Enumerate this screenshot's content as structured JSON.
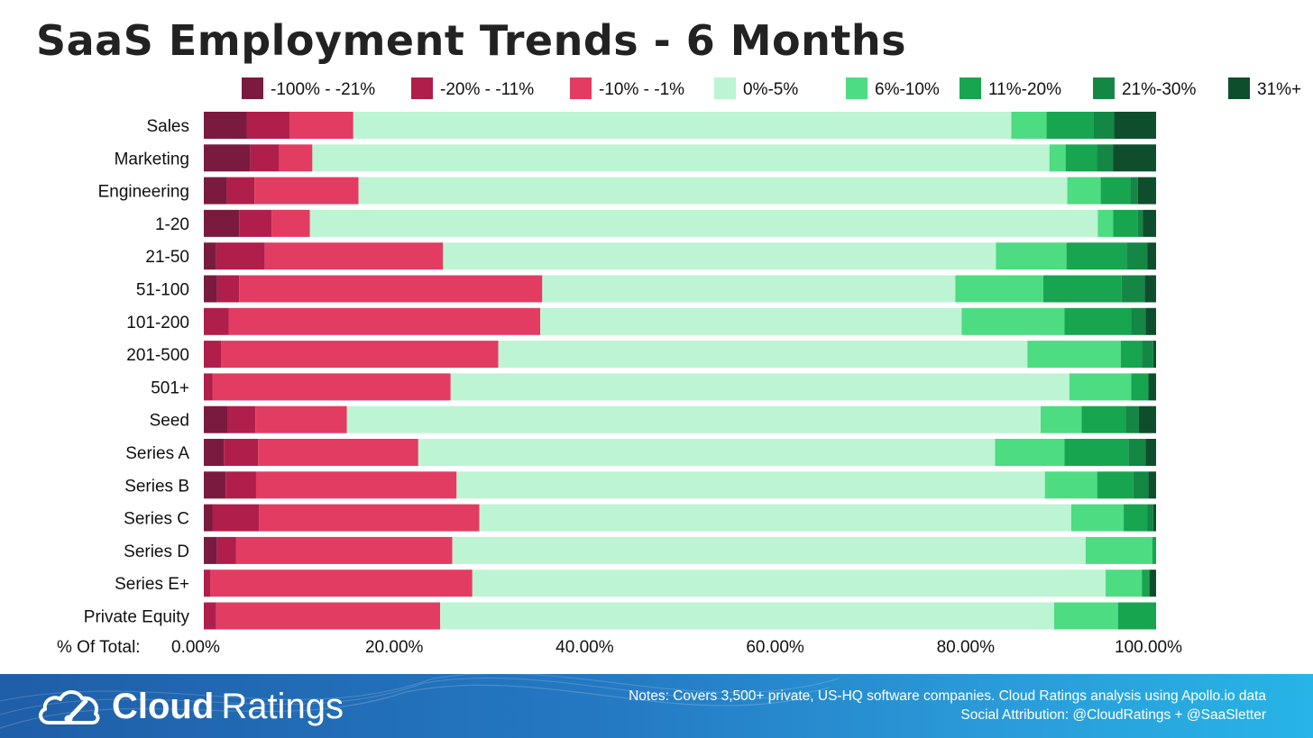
{
  "title": "SaaS Employment Trends - 6 Months",
  "brand": {
    "name_bold": "Cloud",
    "name_regular": "Ratings",
    "logo_icon": "cloud-gauge-icon"
  },
  "footer": {
    "notes": "Notes: Covers 3,500+ private, US-HQ software companies. Cloud Ratings analysis using Apollo.io data",
    "attribution": "Social Attribution: @CloudRatings + @SaaSletter"
  },
  "chart_data": {
    "type": "bar",
    "orientation": "horizontal",
    "stacked": "100%",
    "x_axis_label": "% Of Total:",
    "x_ticks": [
      "0.00%",
      "20.00%",
      "40.00%",
      "60.00%",
      "80.00%",
      "100.00%"
    ],
    "xlim": [
      0,
      100
    ],
    "legend_position": "top",
    "categories": [
      "Sales",
      "Marketing",
      "Engineering",
      "1-20",
      "21-50",
      "51-100",
      "101-200",
      "201-500",
      "501+",
      "Seed",
      "Series A",
      "Series B",
      "Series C",
      "Series D",
      "Series E+",
      "Private Equity"
    ],
    "series": [
      {
        "name": "-100% - -21%",
        "color": "#7b1a3f",
        "values": [
          4.5,
          4.9,
          2.4,
          3.7,
          1.3,
          1.4,
          0.0,
          0.0,
          0.0,
          2.5,
          2.1,
          2.3,
          0.9,
          1.4,
          0.0,
          0.0
        ]
      },
      {
        "name": "-20% - -11%",
        "color": "#b01e4c",
        "values": [
          4.5,
          3.0,
          2.9,
          3.4,
          5.1,
          2.3,
          2.6,
          1.8,
          0.9,
          2.9,
          3.6,
          3.2,
          4.9,
          2.0,
          0.7,
          1.3
        ]
      },
      {
        "name": "-10% - -1%",
        "color": "#e23c63",
        "values": [
          6.7,
          3.5,
          10.9,
          4.0,
          18.7,
          31.7,
          32.7,
          29.1,
          25.0,
          9.6,
          16.8,
          21.1,
          23.1,
          22.7,
          27.5,
          23.5
        ]
      },
      {
        "name": "0%-5%",
        "color": "#bdf4d4",
        "values": [
          69.1,
          77.4,
          74.2,
          82.4,
          58.0,
          43.2,
          44.2,
          55.5,
          64.9,
          72.7,
          60.5,
          61.9,
          62.1,
          66.5,
          66.5,
          64.4
        ]
      },
      {
        "name": "6%-10%",
        "color": "#4ddc82",
        "values": [
          3.7,
          1.7,
          3.5,
          1.6,
          7.4,
          9.2,
          10.8,
          9.8,
          6.5,
          4.3,
          7.3,
          5.5,
          5.5,
          7.0,
          3.8,
          6.7
        ]
      },
      {
        "name": "11%-20%",
        "color": "#17a550",
        "values": [
          4.9,
          3.3,
          3.1,
          2.6,
          6.3,
          8.2,
          7.0,
          2.2,
          1.8,
          4.6,
          6.7,
          3.8,
          2.5,
          0.4,
          0.8,
          4.0
        ]
      },
      {
        "name": "21%-30%",
        "color": "#148745",
        "values": [
          2.2,
          1.7,
          0.8,
          0.5,
          2.2,
          2.4,
          1.5,
          1.2,
          0.0,
          1.4,
          1.8,
          1.6,
          0.6,
          0.0,
          0.0,
          0.0
        ]
      },
      {
        "name": "31%+",
        "color": "#0f4e2c",
        "values": [
          4.4,
          4.5,
          1.9,
          1.4,
          0.9,
          1.2,
          1.1,
          0.3,
          0.8,
          1.8,
          1.1,
          0.8,
          0.3,
          0.0,
          0.7,
          0.0
        ]
      }
    ]
  }
}
